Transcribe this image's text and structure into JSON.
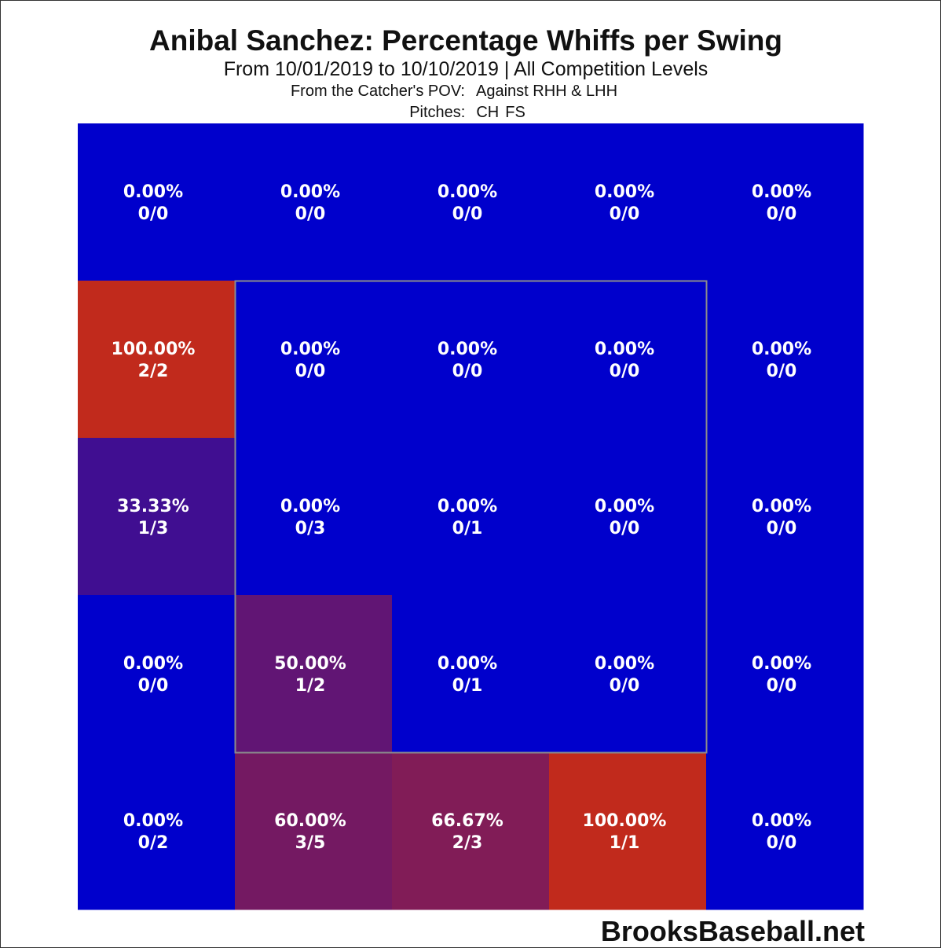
{
  "header": {
    "title": "Anibal Sanchez: Percentage Whiffs per Swing",
    "subtitle": "From 10/01/2019 to 10/10/2019 | All Competition Levels",
    "pov_label": "From the Catcher's POV:",
    "hand_label": "Against RHH & LHH",
    "pitches_label": "Pitches:",
    "pitch_1": "CH",
    "pitch_2": "FS"
  },
  "footer": {
    "credit": "BrooksBaseball.net"
  },
  "chart_data": {
    "type": "heatmap",
    "title": "Anibal Sanchez: Percentage Whiffs per Swing",
    "subtitle": "From 10/01/2019 to 10/10/2019 | All Competition Levels",
    "rows": 5,
    "cols": 5,
    "strike_zone": {
      "row_start": 1,
      "row_end": 3,
      "col_start": 1,
      "col_end": 3
    },
    "colors": {
      "low": "#0000cc",
      "high": "#c12a1c",
      "zone_border": "#8c8c8c"
    },
    "cells": [
      [
        {
          "pct": 0,
          "label": "0.00%",
          "count": "0/0"
        },
        {
          "pct": 0,
          "label": "0.00%",
          "count": "0/0"
        },
        {
          "pct": 0,
          "label": "0.00%",
          "count": "0/0"
        },
        {
          "pct": 0,
          "label": "0.00%",
          "count": "0/0"
        },
        {
          "pct": 0,
          "label": "0.00%",
          "count": "0/0"
        }
      ],
      [
        {
          "pct": 100,
          "label": "100.00%",
          "count": "2/2"
        },
        {
          "pct": 0,
          "label": "0.00%",
          "count": "0/0"
        },
        {
          "pct": 0,
          "label": "0.00%",
          "count": "0/0"
        },
        {
          "pct": 0,
          "label": "0.00%",
          "count": "0/0"
        },
        {
          "pct": 0,
          "label": "0.00%",
          "count": "0/0"
        }
      ],
      [
        {
          "pct": 33.33,
          "label": "33.33%",
          "count": "1/3"
        },
        {
          "pct": 0,
          "label": "0.00%",
          "count": "0/3"
        },
        {
          "pct": 0,
          "label": "0.00%",
          "count": "0/1"
        },
        {
          "pct": 0,
          "label": "0.00%",
          "count": "0/0"
        },
        {
          "pct": 0,
          "label": "0.00%",
          "count": "0/0"
        }
      ],
      [
        {
          "pct": 0,
          "label": "0.00%",
          "count": "0/0"
        },
        {
          "pct": 50,
          "label": "50.00%",
          "count": "1/2"
        },
        {
          "pct": 0,
          "label": "0.00%",
          "count": "0/1"
        },
        {
          "pct": 0,
          "label": "0.00%",
          "count": "0/0"
        },
        {
          "pct": 0,
          "label": "0.00%",
          "count": "0/0"
        }
      ],
      [
        {
          "pct": 0,
          "label": "0.00%",
          "count": "0/2"
        },
        {
          "pct": 60,
          "label": "60.00%",
          "count": "3/5"
        },
        {
          "pct": 66.67,
          "label": "66.67%",
          "count": "2/3"
        },
        {
          "pct": 100,
          "label": "100.00%",
          "count": "1/1"
        },
        {
          "pct": 0,
          "label": "0.00%",
          "count": "0/0"
        }
      ]
    ]
  }
}
